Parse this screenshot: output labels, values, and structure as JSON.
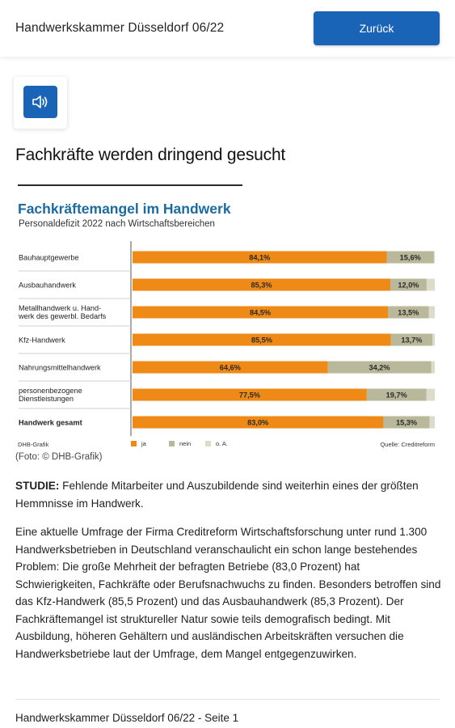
{
  "header": {
    "app_title": "Handwerkskammer Düsseldorf 06/22",
    "back_label": "Zurück"
  },
  "audio": {
    "icon": "speaker-icon"
  },
  "article": {
    "headline": "Fachkräfte werden dringend gesucht",
    "caption": "(Foto: © DHB-Grafik)",
    "lead_label": "STUDIE:",
    "lead_text": " Fehlende Mitarbeiter und Auszubildende sind weiterhin eines der größten Hemmnisse im Handwerk.",
    "body": "Eine aktuelle Umfrage der Firma Creditreform Wirtschaftsforschung unter rund 1.300 Handwerksbetrieben in Deutschland veranschaulicht ein schon lange bestehendes Problem: Die große Mehrheit der befragten Betriebe (83,0 Prozent) hat Schwierigkeiten, Fachkräfte oder Berufsnachwuchs zu finden. Besonders betroffen sind das Kfz-Handwerk (85,5 Prozent) und das Ausbauhandwerk (85,3 Prozent). Der Fachkräftemangel ist struktureller Natur sowie teils demografisch bedingt. Mit Ausbildung, höheren Gehältern und ausländischen Arbeitskräften versuchen die Handwerksbetriebe laut der Umfrage, dem Mangel entgegenzuwirken."
  },
  "footer": {
    "text": "Handwerkskammer Düsseldorf 06/22 - Seite 1"
  },
  "chart_data": {
    "type": "bar",
    "stacked": true,
    "orientation": "horizontal",
    "title": "Fachkräftemangel im Handwerk",
    "subtitle": "Personaldefizit 2022 nach Wirtschaftsbereichen",
    "categories": [
      [
        "Bauhauptgewerbe"
      ],
      [
        "Ausbauhandwerk"
      ],
      [
        "Metallhandwerk u. Hand-",
        "werk des gewerbl. Bedarfs"
      ],
      [
        "Kfz-Handwerk"
      ],
      [
        "Nahrungsmittelhandwerk"
      ],
      [
        "personenbezogene",
        "Dienstleistungen"
      ],
      [
        "Handwerk gesamt"
      ]
    ],
    "bold_category_index": 6,
    "series": [
      {
        "name": "ja",
        "color": "#ef8a17",
        "values": [
          84.1,
          85.3,
          84.5,
          85.5,
          64.6,
          77.5,
          83.0
        ],
        "labels": [
          "84,1%",
          "85,3%",
          "84,5%",
          "85,5%",
          "64,6%",
          "77,5%",
          "83,0%"
        ]
      },
      {
        "name": "nein",
        "color": "#b9b89a",
        "values": [
          15.6,
          12.0,
          13.5,
          13.7,
          34.2,
          19.7,
          15.3
        ],
        "labels": [
          "15,6%",
          "12,0%",
          "13,5%",
          "13,7%",
          "34,2%",
          "19,7%",
          "15,3%"
        ]
      },
      {
        "name": "o. A.",
        "color": "#dcdccb",
        "values": [
          0.3,
          2.7,
          2.0,
          0.8,
          1.2,
          2.8,
          1.7
        ],
        "labels": [
          "",
          "",
          "",
          "",
          "",
          "",
          ""
        ]
      }
    ],
    "xlim": [
      0,
      100
    ],
    "credit_left": "DHB-Grafik",
    "source": "Quelle: Creditreform"
  }
}
